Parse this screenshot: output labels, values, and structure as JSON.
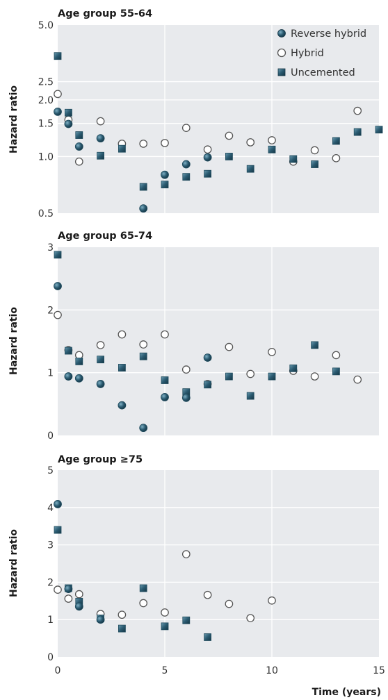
{
  "chart_data": [
    {
      "type": "scatter",
      "title": "Age group 55-64",
      "ylabel": "Hazard ratio",
      "xlabel": "",
      "xlim": [
        0,
        15
      ],
      "ylim": [
        0.5,
        5.0
      ],
      "y_scale": "log",
      "yticks": [
        0.5,
        1.0,
        1.5,
        2.0,
        2.5,
        5.0
      ],
      "ytick_labels": [
        "0.5",
        "1.0",
        "1.5",
        "2.0",
        "2.5",
        "5.0"
      ],
      "xticks": [
        0,
        5,
        10,
        15
      ],
      "grid": true,
      "legend": "top-right",
      "series": [
        {
          "name": "Reverse hybrid",
          "marker": "circle-filled",
          "x": [
            0,
            0.5,
            1,
            2,
            4,
            5,
            6,
            7
          ],
          "y": [
            1.73,
            1.49,
            1.13,
            1.25,
            0.53,
            0.8,
            0.91,
            0.99
          ]
        },
        {
          "name": "Hybrid",
          "marker": "circle-open",
          "x": [
            0,
            0.5,
            1,
            2,
            3,
            4,
            5,
            6,
            7,
            8,
            9,
            10,
            11,
            12,
            13,
            14
          ],
          "y": [
            2.15,
            1.57,
            0.94,
            1.54,
            1.17,
            1.17,
            1.18,
            1.42,
            1.09,
            1.29,
            1.19,
            1.22,
            0.94,
            1.08,
            0.98,
            1.75
          ]
        },
        {
          "name": "Uncemented",
          "marker": "square",
          "x": [
            0,
            0.5,
            1,
            2,
            3,
            4,
            5,
            6,
            7,
            8,
            9,
            10,
            11,
            12,
            13,
            14,
            15
          ],
          "y": [
            3.42,
            1.71,
            1.3,
            1.01,
            1.1,
            0.69,
            0.71,
            0.78,
            0.81,
            1.0,
            0.86,
            1.09,
            0.97,
            0.91,
            1.21,
            1.35,
            1.39
          ]
        }
      ]
    },
    {
      "type": "scatter",
      "title": "Age group 65-74",
      "ylabel": "Hazard ratio",
      "xlabel": "",
      "xlim": [
        0,
        15
      ],
      "ylim": [
        0,
        3
      ],
      "yticks": [
        0,
        1,
        2,
        3
      ],
      "ytick_labels": [
        "0",
        "1",
        "2",
        "3"
      ],
      "xticks": [
        0,
        5,
        10,
        15
      ],
      "grid": true,
      "series": [
        {
          "name": "Reverse hybrid",
          "marker": "circle-filled",
          "x": [
            0,
            0.5,
            1,
            2,
            3,
            4,
            5,
            6,
            7
          ],
          "y": [
            2.38,
            0.94,
            0.91,
            0.82,
            0.48,
            0.12,
            0.61,
            0.6,
            1.24
          ]
        },
        {
          "name": "Hybrid",
          "marker": "circle-open",
          "x": [
            0,
            0.5,
            1,
            2,
            3,
            4,
            5,
            6,
            7,
            8,
            9,
            10,
            11,
            12,
            13,
            14
          ],
          "y": [
            1.92,
            1.36,
            1.28,
            1.44,
            1.61,
            1.45,
            1.61,
            1.05,
            0.82,
            1.41,
            0.98,
            1.33,
            1.03,
            0.94,
            1.28,
            0.89
          ]
        },
        {
          "name": "Uncemented",
          "marker": "square",
          "x": [
            0,
            0.5,
            1,
            2,
            3,
            4,
            5,
            6,
            7,
            8,
            9,
            10,
            11,
            12,
            13
          ],
          "y": [
            2.88,
            1.35,
            1.18,
            1.21,
            1.08,
            1.26,
            0.88,
            0.69,
            0.81,
            0.94,
            0.63,
            0.94,
            1.07,
            1.44,
            1.02
          ]
        }
      ]
    },
    {
      "type": "scatter",
      "title": "Age group ≥75",
      "ylabel": "Hazard ratio",
      "xlabel": "Time (years)",
      "xlim": [
        0,
        15
      ],
      "ylim": [
        0,
        5
      ],
      "yticks": [
        0,
        1,
        2,
        3,
        4,
        5
      ],
      "ytick_labels": [
        "0",
        "1",
        "2",
        "3",
        "4",
        "5"
      ],
      "xticks": [
        0,
        5,
        10,
        15
      ],
      "xtick_labels": [
        "0",
        "5",
        "10",
        "15"
      ],
      "grid": true,
      "series": [
        {
          "name": "Reverse hybrid",
          "marker": "circle-filled",
          "x": [
            0,
            0.5,
            1,
            2
          ],
          "y": [
            4.09,
            1.82,
            1.35,
            1.0
          ]
        },
        {
          "name": "Hybrid",
          "marker": "circle-open",
          "x": [
            0,
            0.5,
            1,
            2,
            3,
            4,
            5,
            6,
            7,
            8,
            9,
            10
          ],
          "y": [
            1.8,
            1.56,
            1.68,
            1.15,
            1.13,
            1.44,
            1.19,
            2.75,
            1.66,
            1.42,
            1.04,
            1.51
          ]
        },
        {
          "name": "Uncemented",
          "marker": "square",
          "x": [
            0,
            0.5,
            1,
            2,
            3,
            4,
            5,
            6,
            7
          ],
          "y": [
            3.4,
            1.84,
            1.48,
            1.03,
            0.76,
            1.84,
            0.82,
            0.98,
            0.53
          ]
        }
      ]
    }
  ],
  "legend": {
    "items": [
      {
        "label": "Reverse hybrid",
        "marker": "circle-filled"
      },
      {
        "label": "Hybrid",
        "marker": "circle-open"
      },
      {
        "label": "Uncemented",
        "marker": "square"
      }
    ]
  },
  "colors": {
    "marker_dark": "#1f4a5c",
    "marker_highlight": "#6a9bb0",
    "hybrid_stroke": "#555555",
    "hybrid_fill": "#ffffff",
    "plot_background": "#e8eaed"
  }
}
